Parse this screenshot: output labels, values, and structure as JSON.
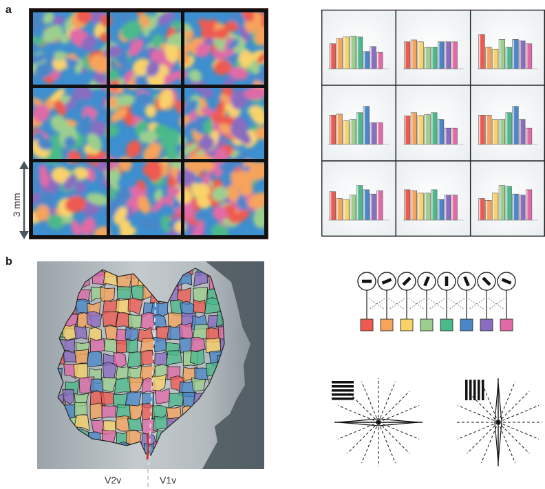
{
  "panels": {
    "a": {
      "label": "a",
      "scale_bar_label": "3 mm"
    },
    "b": {
      "label": "b",
      "area_left_label": "V2v",
      "area_right_label": "V1v"
    }
  },
  "colors": {
    "orientation_palette": [
      "#ee5a4f",
      "#f6a35c",
      "#f9d26a",
      "#9ccf8e",
      "#4cb98a",
      "#4a86c8",
      "#8a6cc0",
      "#e06aa6"
    ],
    "map_background": "#b8bfc4",
    "map_dark_edge": "#4f5b62",
    "chart_panel_bg": "#e9eef0"
  },
  "icons": {
    "orientation_neurons": "orientation-tuned-neuron-icons",
    "grating_horizontal": "horizontal-grating-icon",
    "grating_vertical": "vertical-grating-icon"
  },
  "chart_data": {
    "type": "bar",
    "title": "",
    "xlabel": "",
    "ylabel": "",
    "ylim": [
      0,
      1
    ],
    "grid": false,
    "tiles": [
      {
        "values": [
          0.52,
          0.63,
          0.66,
          0.68,
          0.66,
          0.36,
          0.46,
          0.34
        ]
      },
      {
        "values": [
          0.56,
          0.6,
          0.56,
          0.45,
          0.45,
          0.56,
          0.56,
          0.56
        ]
      },
      {
        "values": [
          0.71,
          0.45,
          0.41,
          0.61,
          0.45,
          0.61,
          0.58,
          0.52
        ]
      },
      {
        "values": [
          0.61,
          0.63,
          0.49,
          0.52,
          0.66,
          0.79,
          0.45,
          0.45
        ]
      },
      {
        "values": [
          0.59,
          0.66,
          0.6,
          0.62,
          0.66,
          0.52,
          0.34,
          0.34
        ]
      },
      {
        "values": [
          0.61,
          0.61,
          0.52,
          0.52,
          0.66,
          0.79,
          0.52,
          0.34
        ]
      },
      {
        "values": [
          0.59,
          0.45,
          0.43,
          0.52,
          0.72,
          0.63,
          0.54,
          0.61
        ]
      },
      {
        "values": [
          0.63,
          0.61,
          0.56,
          0.56,
          0.63,
          0.43,
          0.52,
          0.52
        ]
      },
      {
        "values": [
          0.45,
          0.41,
          0.56,
          0.72,
          0.7,
          0.54,
          0.52,
          0.63
        ]
      }
    ]
  },
  "orientation_angles_deg": [
    0,
    22.5,
    45,
    67.5,
    90,
    112.5,
    135,
    157.5
  ]
}
